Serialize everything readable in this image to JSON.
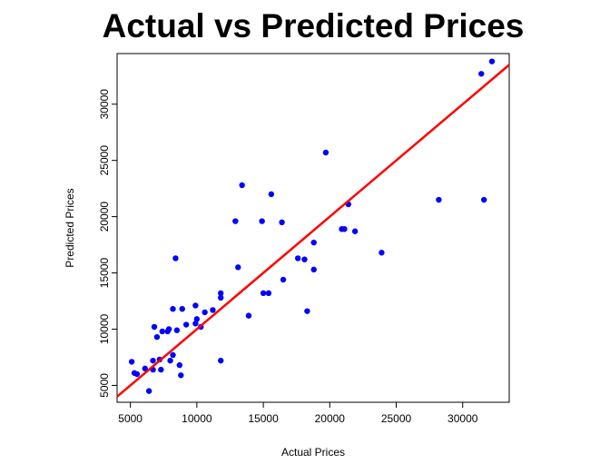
{
  "chart_data": {
    "type": "scatter",
    "title": "Actual vs Predicted Prices",
    "xlabel": "Actual Prices",
    "ylabel": "Predicted Prices",
    "xlim": [
      4000,
      33500
    ],
    "ylim": [
      3500,
      34500
    ],
    "x_ticks": [
      5000,
      10000,
      15000,
      20000,
      25000,
      30000
    ],
    "y_ticks": [
      5000,
      10000,
      15000,
      20000,
      25000,
      30000
    ],
    "grid": false,
    "legend": "none",
    "points": [
      {
        "x": 5100,
        "y": 7100
      },
      {
        "x": 5300,
        "y": 6100
      },
      {
        "x": 5500,
        "y": 6000
      },
      {
        "x": 6100,
        "y": 6500
      },
      {
        "x": 6400,
        "y": 4500
      },
      {
        "x": 6700,
        "y": 6400
      },
      {
        "x": 6700,
        "y": 7200
      },
      {
        "x": 6800,
        "y": 10200
      },
      {
        "x": 7000,
        "y": 9300
      },
      {
        "x": 7200,
        "y": 7300
      },
      {
        "x": 7300,
        "y": 6400
      },
      {
        "x": 7400,
        "y": 9800
      },
      {
        "x": 7800,
        "y": 9800
      },
      {
        "x": 7900,
        "y": 10000
      },
      {
        "x": 8000,
        "y": 7200
      },
      {
        "x": 8200,
        "y": 11800
      },
      {
        "x": 8200,
        "y": 7700
      },
      {
        "x": 8400,
        "y": 16300
      },
      {
        "x": 8500,
        "y": 9900
      },
      {
        "x": 8700,
        "y": 6800
      },
      {
        "x": 8800,
        "y": 5900
      },
      {
        "x": 8900,
        "y": 11800
      },
      {
        "x": 9200,
        "y": 10400
      },
      {
        "x": 9900,
        "y": 10500
      },
      {
        "x": 9900,
        "y": 12100
      },
      {
        "x": 10000,
        "y": 10900
      },
      {
        "x": 10300,
        "y": 10200
      },
      {
        "x": 10600,
        "y": 11500
      },
      {
        "x": 11200,
        "y": 11700
      },
      {
        "x": 11800,
        "y": 7200
      },
      {
        "x": 11800,
        "y": 13200
      },
      {
        "x": 11800,
        "y": 12800
      },
      {
        "x": 12900,
        "y": 19600
      },
      {
        "x": 13100,
        "y": 15500
      },
      {
        "x": 13400,
        "y": 22800
      },
      {
        "x": 13900,
        "y": 11200
      },
      {
        "x": 14900,
        "y": 19600
      },
      {
        "x": 15000,
        "y": 13200
      },
      {
        "x": 15400,
        "y": 13200
      },
      {
        "x": 15600,
        "y": 22000
      },
      {
        "x": 16400,
        "y": 19500
      },
      {
        "x": 16500,
        "y": 14400
      },
      {
        "x": 17600,
        "y": 16300
      },
      {
        "x": 18100,
        "y": 16200
      },
      {
        "x": 18300,
        "y": 11600
      },
      {
        "x": 18800,
        "y": 17700
      },
      {
        "x": 18800,
        "y": 15300
      },
      {
        "x": 19700,
        "y": 25700
      },
      {
        "x": 20900,
        "y": 18900
      },
      {
        "x": 21100,
        "y": 18900
      },
      {
        "x": 21400,
        "y": 21100
      },
      {
        "x": 21900,
        "y": 18700
      },
      {
        "x": 23900,
        "y": 16800
      },
      {
        "x": 28200,
        "y": 21500
      },
      {
        "x": 31400,
        "y": 32700
      },
      {
        "x": 31600,
        "y": 21500
      },
      {
        "x": 32200,
        "y": 33800
      }
    ],
    "reference_line": {
      "slope": 1,
      "intercept": 0
    },
    "colors": {
      "points": "#0000ff",
      "line": "#ff0000",
      "frame": "#000000"
    }
  }
}
